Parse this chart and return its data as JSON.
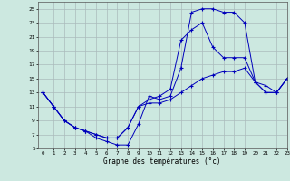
{
  "background_color": "#cce8e0",
  "grid_color": "#aabbbb",
  "line_color": "#0000bb",
  "xlabel": "Graphe des températures (°c)",
  "xlim": [
    -0.5,
    23
  ],
  "ylim": [
    5,
    26
  ],
  "yticks": [
    5,
    7,
    9,
    11,
    13,
    15,
    17,
    19,
    21,
    23,
    25
  ],
  "xticks": [
    0,
    1,
    2,
    3,
    4,
    5,
    6,
    7,
    8,
    9,
    10,
    11,
    12,
    13,
    14,
    15,
    16,
    17,
    18,
    19,
    20,
    21,
    22,
    23
  ],
  "line1_x": [
    0,
    1,
    2,
    3,
    4,
    5,
    6,
    7,
    8,
    9,
    10,
    11,
    12,
    13,
    14,
    15,
    16,
    17,
    18,
    19,
    20,
    21,
    22,
    23
  ],
  "line1_y": [
    13,
    11,
    9,
    8,
    7.5,
    6.5,
    6,
    5.5,
    5.5,
    8.5,
    12.5,
    12,
    12.5,
    16.5,
    24.5,
    25,
    25,
    24.5,
    24.5,
    23,
    14.5,
    14,
    13,
    15
  ],
  "line2_x": [
    0,
    1,
    2,
    3,
    4,
    5,
    6,
    7,
    8,
    9,
    10,
    11,
    12,
    13,
    14,
    15,
    16,
    17,
    18,
    19,
    20,
    21,
    22,
    23
  ],
  "line2_y": [
    13,
    11,
    9,
    8,
    7.5,
    7,
    6.5,
    6.5,
    8,
    11,
    12,
    12.5,
    13.5,
    20.5,
    22,
    23,
    19.5,
    18,
    18,
    18,
    14.5,
    13,
    13,
    15
  ],
  "line3_x": [
    0,
    1,
    2,
    3,
    4,
    5,
    6,
    7,
    8,
    9,
    10,
    11,
    12,
    13,
    14,
    15,
    16,
    17,
    18,
    19,
    20,
    21,
    22,
    23
  ],
  "line3_y": [
    13,
    11,
    9,
    8,
    7.5,
    7,
    6.5,
    6.5,
    8,
    11,
    11.5,
    11.5,
    12,
    13,
    14,
    15,
    15.5,
    16,
    16,
    16.5,
    14.5,
    13,
    13,
    15
  ]
}
